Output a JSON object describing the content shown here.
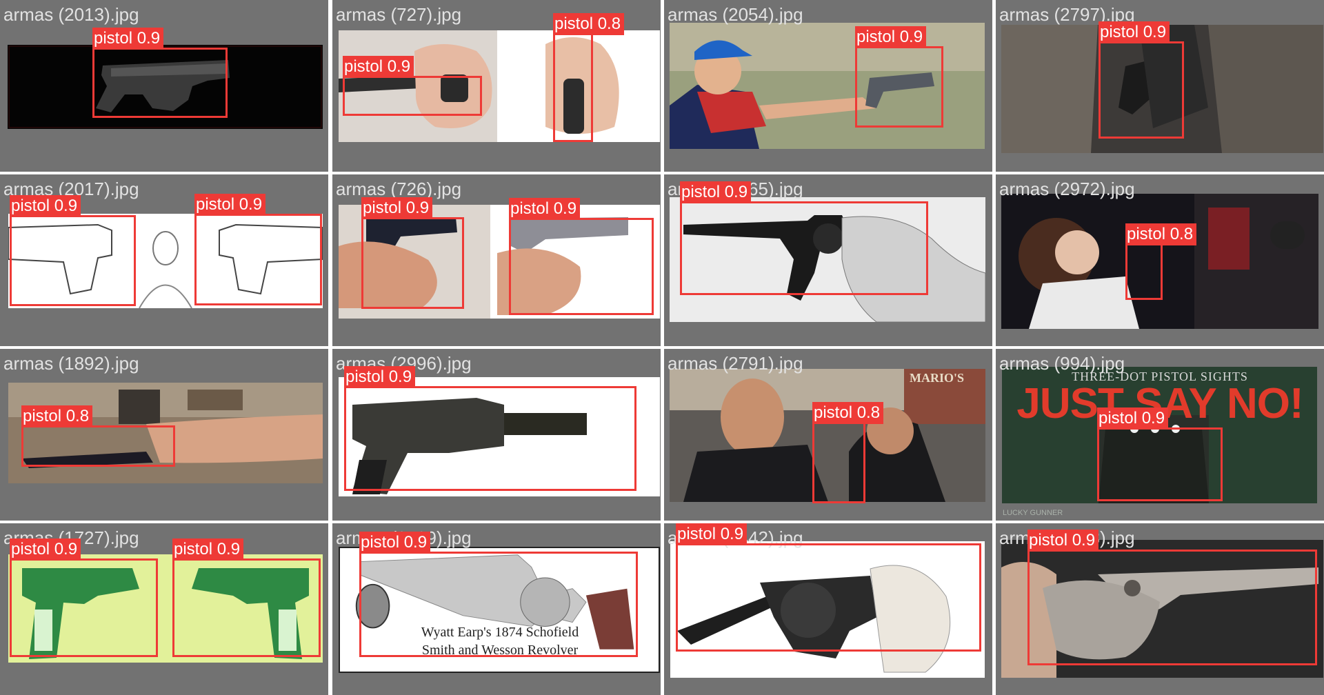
{
  "title": "Detection results grid",
  "colors": {
    "box": "#ee3a36",
    "tile_bg": "#727272",
    "label_text": "#ffffff",
    "filename_text": "#e2e2e2"
  },
  "tiles": [
    {
      "filename": "armas (2013).jpg",
      "detections": [
        {
          "label": "pistol 0.9"
        }
      ]
    },
    {
      "filename": "armas (727).jpg",
      "detections": [
        {
          "label": "pistol 0.9"
        },
        {
          "label": "pistol 0.8"
        }
      ]
    },
    {
      "filename": "armas (2054).jpg",
      "detections": [
        {
          "label": "pistol 0.9"
        }
      ]
    },
    {
      "filename": "armas (2797).jpg",
      "detections": [
        {
          "label": "pistol 0.9"
        }
      ]
    },
    {
      "filename": "armas (2017).jpg",
      "detections": [
        {
          "label": "pistol 0.9"
        },
        {
          "label": "pistol 0.9"
        }
      ]
    },
    {
      "filename": "armas (726).jpg",
      "detections": [
        {
          "label": "pistol 0.9"
        },
        {
          "label": "pistol 0.9"
        }
      ]
    },
    {
      "filename": "armas (2265).jpg",
      "detections": [
        {
          "label": "pistol 0.9"
        }
      ]
    },
    {
      "filename": "armas (2972).jpg",
      "detections": [
        {
          "label": "pistol 0.8"
        }
      ]
    },
    {
      "filename": "armas (1892).jpg",
      "detections": [
        {
          "label": "pistol 0.8"
        }
      ]
    },
    {
      "filename": "armas (2996).jpg",
      "detections": [
        {
          "label": "pistol 0.9"
        }
      ]
    },
    {
      "filename": "armas (2791).jpg",
      "detections": [
        {
          "label": "pistol 0.8"
        }
      ],
      "sign_text": "MARIO'S"
    },
    {
      "filename": "armas (994).jpg",
      "detections": [
        {
          "label": "pistol 0.9"
        }
      ],
      "banner_line1": "THREE-DOT PISTOL SIGHTS",
      "banner_line2": "JUST SAY NO!",
      "watermark": "LUCKY GUNNER"
    },
    {
      "filename": "armas (1727).jpg",
      "detections": [
        {
          "label": "pistol 0.9"
        },
        {
          "label": "pistol 0.9"
        }
      ]
    },
    {
      "filename": "armas (2589).jpg",
      "detections": [
        {
          "label": "pistol 0.9"
        }
      ],
      "caption_line1": "Wyatt Earp's 1874 Schofield",
      "caption_line2": "Smith and Wesson Revolver"
    },
    {
      "filename": "armas (2442).jpg",
      "detections": [
        {
          "label": "pistol 0.9"
        }
      ]
    },
    {
      "filename": "armas (2633).jpg",
      "detections": [
        {
          "label": "pistol 0.9"
        }
      ]
    }
  ]
}
